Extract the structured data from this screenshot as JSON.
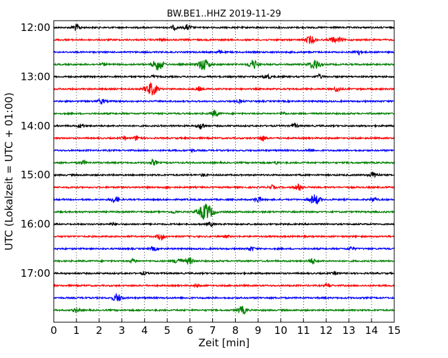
{
  "chart_data": {
    "type": "line",
    "title": "BW.BE1..HHZ 2019-11-29",
    "xlabel": "Zeit  [min]",
    "ylabel": "UTC (Lokalzeit = UTC + 01:00)",
    "xlim": [
      0,
      15
    ],
    "x_ticks": [
      "0",
      "1",
      "2",
      "3",
      "4",
      "5",
      "6",
      "7",
      "8",
      "9",
      "10",
      "11",
      "12",
      "13",
      "14",
      "15"
    ],
    "y_tick_labels": [
      "12:00",
      "13:00",
      "14:00",
      "15:00",
      "16:00",
      "17:00"
    ],
    "grid": "vertical dotted lines at each minute",
    "color_cycle": [
      "#000000",
      "#ff0000",
      "#0000ff",
      "#008000"
    ],
    "traces": [
      {
        "start": "12:00",
        "events": [
          [
            1.0,
            0.5
          ],
          [
            5.3,
            0.3
          ],
          [
            5.9,
            0.4
          ]
        ]
      },
      {
        "start": "12:15",
        "events": [
          [
            11.3,
            0.6
          ],
          [
            12.3,
            0.4
          ],
          [
            12.6,
            0.3
          ],
          [
            4.7,
            0.2
          ]
        ]
      },
      {
        "start": "12:30",
        "events": [
          [
            13.4,
            0.4
          ],
          [
            7.3,
            0.2
          ]
        ]
      },
      {
        "start": "12:45",
        "events": [
          [
            4.6,
            0.9
          ],
          [
            6.6,
            0.9
          ],
          [
            8.8,
            0.7
          ],
          [
            11.5,
            0.8
          ],
          [
            2.2,
            0.2
          ]
        ]
      },
      {
        "start": "13:00",
        "events": [
          [
            9.4,
            0.4
          ],
          [
            11.7,
            0.3
          ],
          [
            4.4,
            0.2
          ]
        ]
      },
      {
        "start": "13:15",
        "events": [
          [
            4.3,
            1.0
          ],
          [
            6.4,
            0.3
          ],
          [
            12.5,
            0.4
          ]
        ]
      },
      {
        "start": "13:30",
        "events": [
          [
            2.1,
            0.4
          ],
          [
            8.2,
            0.2
          ]
        ]
      },
      {
        "start": "13:45",
        "events": [
          [
            7.1,
            0.5
          ],
          [
            10.1,
            0.2
          ]
        ]
      },
      {
        "start": "14:00",
        "events": [
          [
            6.5,
            0.5
          ],
          [
            1.2,
            0.3
          ],
          [
            10.6,
            0.3
          ]
        ]
      },
      {
        "start": "14:15",
        "events": [
          [
            3.7,
            0.4
          ],
          [
            9.2,
            0.4
          ],
          [
            3.1,
            0.2
          ]
        ]
      },
      {
        "start": "14:30",
        "events": [
          [
            6.1,
            0.2
          ],
          [
            11.3,
            0.2
          ]
        ]
      },
      {
        "start": "14:45",
        "events": [
          [
            1.3,
            0.3
          ],
          [
            4.4,
            0.4
          ],
          [
            9.8,
            0.2
          ]
        ]
      },
      {
        "start": "15:00",
        "events": [
          [
            14.1,
            0.5
          ],
          [
            6.6,
            0.2
          ]
        ]
      },
      {
        "start": "15:15",
        "events": [
          [
            10.8,
            0.5
          ],
          [
            9.6,
            0.3
          ],
          [
            5.0,
            0.2
          ]
        ]
      },
      {
        "start": "15:30",
        "events": [
          [
            2.7,
            0.5
          ],
          [
            9.0,
            0.4
          ],
          [
            11.5,
            0.8
          ],
          [
            14.1,
            0.3
          ]
        ]
      },
      {
        "start": "15:45",
        "events": [
          [
            6.7,
            1.3
          ],
          [
            5.3,
            0.2
          ]
        ]
      },
      {
        "start": "16:00",
        "events": [
          [
            6.9,
            0.3
          ],
          [
            2.6,
            0.2
          ]
        ]
      },
      {
        "start": "16:15",
        "events": [
          [
            4.7,
            0.5
          ],
          [
            7.6,
            0.2
          ]
        ]
      },
      {
        "start": "16:30",
        "events": [
          [
            4.4,
            0.3
          ],
          [
            8.7,
            0.3
          ],
          [
            13.1,
            0.3
          ]
        ]
      },
      {
        "start": "16:45",
        "events": [
          [
            5.5,
            0.5
          ],
          [
            6.0,
            0.5
          ],
          [
            3.5,
            0.3
          ],
          [
            11.4,
            0.4
          ]
        ]
      },
      {
        "start": "17:00",
        "events": [
          [
            4.0,
            0.2
          ],
          [
            12.4,
            0.2
          ]
        ]
      },
      {
        "start": "17:15",
        "events": [
          [
            12.1,
            0.3
          ],
          [
            6.3,
            0.2
          ]
        ]
      },
      {
        "start": "17:30",
        "events": [
          [
            2.8,
            0.6
          ]
        ]
      },
      {
        "start": "17:45",
        "events": [
          [
            8.3,
            0.6
          ],
          [
            1.0,
            0.3
          ]
        ]
      }
    ]
  }
}
